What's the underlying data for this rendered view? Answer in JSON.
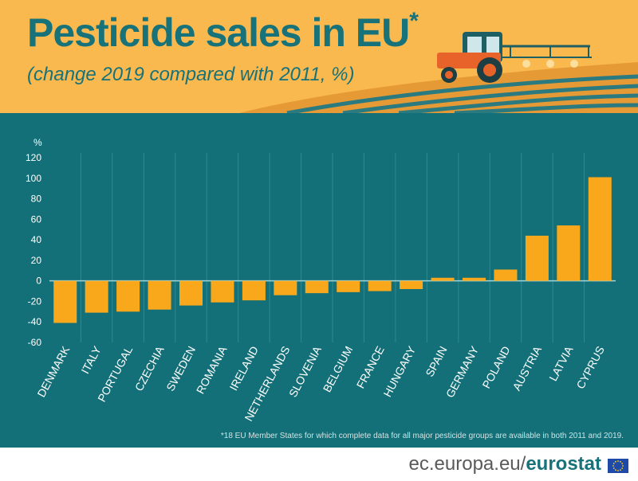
{
  "header": {
    "title": "Pesticide sales in EU",
    "title_mark": "*",
    "subtitle": "(change 2019 compared with 2011, %)",
    "illustration": "tractor-spraying-field"
  },
  "colors": {
    "header_bg": "#f9b94f",
    "panel_bg": "#147078",
    "title": "#17727a",
    "bar": "#f9a81b"
  },
  "chart_data": {
    "type": "bar",
    "unit_label": "%",
    "categories": [
      "DENMARK",
      "ITALY",
      "PORTUGAL",
      "CZECHIA",
      "SWEDEN",
      "ROMANIA",
      "IRELAND",
      "NETHERLANDS",
      "SLOVENIA",
      "BELGIUM",
      "FRANCE",
      "HUNGARY",
      "SPAIN",
      "GERMANY",
      "POLAND",
      "AUSTRIA",
      "LATVIA",
      "CYPRUS"
    ],
    "values": [
      -41,
      -31,
      -30,
      -28,
      -24,
      -21,
      -19,
      -14,
      -12,
      -11,
      -10,
      -8,
      3,
      3,
      11,
      44,
      54,
      101
    ],
    "ylim": [
      -60,
      120
    ],
    "yticks": [
      120,
      100,
      80,
      60,
      40,
      20,
      0,
      -20,
      -40,
      -60
    ],
    "grid": true
  },
  "footnote": "*18 EU Member States for which complete data for all major pesticide groups are available in both 2011 and 2019.",
  "footer": {
    "site_prefix": "ec.europa.eu/",
    "site_brand": "eurostat"
  }
}
